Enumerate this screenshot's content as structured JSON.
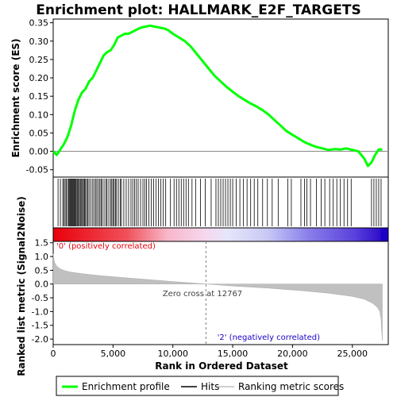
{
  "chart_data": {
    "title": "Enrichment plot: HALLMARK_E2F_TARGETS",
    "top_panel": {
      "type": "line",
      "ylabel": "Enrichment score (ES)",
      "ylim": [
        -0.07,
        0.36
      ],
      "y_ticks": [
        "0.35",
        "0.30",
        "0.25",
        "0.20",
        "0.15",
        "0.10",
        "0.05",
        "0.00",
        "-0.05"
      ],
      "series": [
        {
          "name": "Enrichment profile",
          "color": "#00ff00",
          "x": [
            0,
            300,
            600,
            900,
            1200,
            1500,
            1800,
            2100,
            2400,
            2700,
            3000,
            3300,
            3600,
            3900,
            4200,
            4500,
            4800,
            5100,
            5400,
            5700,
            6000,
            6300,
            6600,
            6900,
            7200,
            7500,
            7800,
            8100,
            8400,
            8700,
            9000,
            9300,
            9600,
            10000,
            10500,
            11000,
            11500,
            12000,
            12500,
            13000,
            13500,
            14000,
            14500,
            15000,
            15500,
            16000,
            16500,
            17000,
            17500,
            18000,
            18500,
            19000,
            19500,
            20000,
            20500,
            21000,
            21500,
            22000,
            22500,
            23000,
            23500,
            24000,
            24500,
            25000,
            25500,
            26000,
            26300,
            26600,
            26900,
            27200,
            27500
          ],
          "y": [
            0.0,
            -0.01,
            0.005,
            0.02,
            0.04,
            0.07,
            0.11,
            0.14,
            0.16,
            0.17,
            0.19,
            0.2,
            0.22,
            0.24,
            0.26,
            0.27,
            0.275,
            0.29,
            0.31,
            0.315,
            0.32,
            0.32,
            0.325,
            0.33,
            0.335,
            0.338,
            0.34,
            0.342,
            0.34,
            0.338,
            0.336,
            0.334,
            0.33,
            0.32,
            0.31,
            0.3,
            0.285,
            0.265,
            0.245,
            0.225,
            0.205,
            0.19,
            0.175,
            0.162,
            0.15,
            0.14,
            0.13,
            0.122,
            0.112,
            0.1,
            0.085,
            0.07,
            0.055,
            0.045,
            0.035,
            0.025,
            0.018,
            0.012,
            0.008,
            0.004,
            0.006,
            0.005,
            0.008,
            0.004,
            0.0,
            -0.02,
            -0.04,
            -0.03,
            -0.01,
            0.005,
            0.005
          ]
        }
      ]
    },
    "hits_panel": {
      "legend": "Hits",
      "hit_ranks": [
        405,
        600,
        800,
        900,
        1000,
        1100,
        1200,
        1300,
        1350,
        1420,
        1500,
        1560,
        1620,
        1700,
        1760,
        1830,
        1900,
        1980,
        2050,
        2120,
        2200,
        2300,
        2380,
        2450,
        2540,
        2620,
        2700,
        2800,
        2900,
        3000,
        3150,
        3300,
        3420,
        3550,
        3650,
        3780,
        3900,
        4000,
        4100,
        4250,
        4400,
        4500,
        4650,
        4800,
        4900,
        5000,
        5100,
        5200,
        5300,
        5450,
        5600,
        5700,
        5900,
        6100,
        6300,
        6500,
        6650,
        6800,
        6950,
        7100,
        7300,
        7500,
        7650,
        7800,
        8000,
        8200,
        8400,
        8600,
        8800,
        9000,
        9200,
        9400,
        9800,
        10100,
        10300,
        10500,
        10700,
        10900,
        11100,
        11300,
        11600,
        11900,
        12300,
        12700,
        13200,
        13600,
        13800,
        14000,
        14200,
        14400,
        14600,
        14800,
        15000,
        15300,
        15600,
        15900,
        16200,
        16500,
        16800,
        17100,
        17500,
        17900,
        18300,
        18800,
        19600,
        19900,
        20700,
        21000,
        21200,
        21500,
        22000,
        22400,
        22700,
        23100,
        23400,
        23700,
        24000,
        24300,
        24600,
        24900,
        26600,
        26800,
        27000,
        27200,
        27400
      ]
    },
    "rank_bar": {
      "positive_color": "#e8000b",
      "negative_color": "#1a00c8"
    },
    "bottom_panel": {
      "type": "area",
      "ylabel": "Ranked list metric (Signal2Noise)",
      "xlabel": "Rank in Ordered Dataset",
      "xlim": [
        0,
        28000
      ],
      "ylim": [
        -2.2,
        1.55
      ],
      "x_ticks": [
        "0",
        "5,000",
        "10,000",
        "15,000",
        "20,000",
        "25,000"
      ],
      "x_tick_values": [
        0,
        5000,
        10000,
        15000,
        20000,
        25000
      ],
      "y_ticks": [
        "1.5",
        "1.0",
        "0.5",
        "0.0",
        "-0.5",
        "-1.0",
        "-1.5",
        "-2.0"
      ],
      "metric_x": [
        0,
        50,
        150,
        300,
        600,
        1000,
        1500,
        2500,
        4000,
        6000,
        8000,
        10000,
        12767,
        15000,
        18000,
        21000,
        23000,
        25000,
        26000,
        26700,
        27100,
        27300,
        27400,
        27450,
        27500
      ],
      "metric_y": [
        1.1,
        0.9,
        0.75,
        0.65,
        0.55,
        0.48,
        0.43,
        0.37,
        0.3,
        0.23,
        0.16,
        0.09,
        0.0,
        -0.07,
        -0.15,
        -0.25,
        -0.33,
        -0.45,
        -0.55,
        -0.7,
        -0.85,
        -1.0,
        -1.3,
        -1.7,
        -2.05
      ],
      "zero_cross_label": "Zero cross at 12767",
      "zero_cross_x": 12767,
      "pos_label": "'0' (positively correlated)",
      "neg_label": "'2' (negatively correlated)",
      "pos_label_color": "#e8000b",
      "neg_label_color": "#1a00c8"
    },
    "legend": [
      {
        "label": "Enrichment profile",
        "color": "#00ff00"
      },
      {
        "label": "Hits",
        "color": "#000000"
      },
      {
        "label": "Ranking metric scores",
        "color": "#c0c0c0"
      }
    ]
  }
}
